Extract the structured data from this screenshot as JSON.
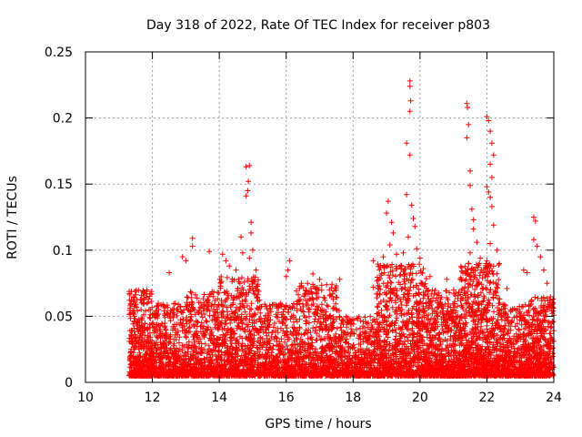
{
  "chart_data": {
    "type": "scatter",
    "title": "Day 318 of 2022, Rate Of TEC Index for receiver p803",
    "xlabel": "GPS time / hours",
    "ylabel": "ROTI / TECUs",
    "xlim": [
      10,
      24
    ],
    "ylim": [
      0,
      0.25
    ],
    "xticks": [
      "10",
      "12",
      "14",
      "16",
      "18",
      "20",
      "22",
      "24"
    ],
    "yticks": [
      "0",
      "0.05",
      "0.1",
      "0.15",
      "0.2",
      "0.25"
    ],
    "grid": true,
    "marker": "+",
    "color": "#ff0000",
    "series": [
      {
        "name": "ROTI",
        "density": [
          {
            "x0": 11.3,
            "x1": 12.0,
            "low": 0.005,
            "high": 0.07,
            "n": 500
          },
          {
            "x0": 12.0,
            "x1": 13.0,
            "low": 0.005,
            "high": 0.06,
            "n": 500
          },
          {
            "x0": 13.0,
            "x1": 14.0,
            "low": 0.005,
            "high": 0.07,
            "n": 500
          },
          {
            "x0": 14.0,
            "x1": 15.2,
            "low": 0.005,
            "high": 0.08,
            "n": 650
          },
          {
            "x0": 15.2,
            "x1": 16.3,
            "low": 0.005,
            "high": 0.06,
            "n": 520
          },
          {
            "x0": 16.3,
            "x1": 17.6,
            "low": 0.005,
            "high": 0.075,
            "n": 650
          },
          {
            "x0": 17.6,
            "x1": 18.7,
            "low": 0.005,
            "high": 0.05,
            "n": 480
          },
          {
            "x0": 18.7,
            "x1": 20.2,
            "low": 0.005,
            "high": 0.09,
            "n": 900
          },
          {
            "x0": 20.2,
            "x1": 21.2,
            "low": 0.005,
            "high": 0.07,
            "n": 650
          },
          {
            "x0": 21.2,
            "x1": 22.4,
            "low": 0.005,
            "high": 0.09,
            "n": 850
          },
          {
            "x0": 22.4,
            "x1": 23.3,
            "low": 0.005,
            "high": 0.06,
            "n": 520
          },
          {
            "x0": 23.3,
            "x1": 24.0,
            "low": 0.005,
            "high": 0.065,
            "n": 450
          }
        ],
        "peaks": [
          {
            "x": 13.2,
            "y": 0.109
          },
          {
            "x": 13.2,
            "y": 0.103
          },
          {
            "x": 12.9,
            "y": 0.095
          },
          {
            "x": 13.0,
            "y": 0.092
          },
          {
            "x": 12.5,
            "y": 0.083
          },
          {
            "x": 13.7,
            "y": 0.099
          },
          {
            "x": 14.1,
            "y": 0.097
          },
          {
            "x": 14.2,
            "y": 0.092
          },
          {
            "x": 14.3,
            "y": 0.088
          },
          {
            "x": 14.5,
            "y": 0.085
          },
          {
            "x": 14.65,
            "y": 0.11
          },
          {
            "x": 14.7,
            "y": 0.098
          },
          {
            "x": 14.8,
            "y": 0.163
          },
          {
            "x": 14.9,
            "y": 0.164
          },
          {
            "x": 14.87,
            "y": 0.152
          },
          {
            "x": 14.85,
            "y": 0.145
          },
          {
            "x": 14.8,
            "y": 0.141
          },
          {
            "x": 14.95,
            "y": 0.121
          },
          {
            "x": 14.95,
            "y": 0.113
          },
          {
            "x": 15.0,
            "y": 0.1
          },
          {
            "x": 14.9,
            "y": 0.094
          },
          {
            "x": 15.1,
            "y": 0.085
          },
          {
            "x": 16.1,
            "y": 0.092
          },
          {
            "x": 16.05,
            "y": 0.085
          },
          {
            "x": 16.0,
            "y": 0.08
          },
          {
            "x": 16.8,
            "y": 0.082
          },
          {
            "x": 17.0,
            "y": 0.078
          },
          {
            "x": 17.6,
            "y": 0.078
          },
          {
            "x": 17.5,
            "y": 0.073
          },
          {
            "x": 18.6,
            "y": 0.072
          },
          {
            "x": 18.7,
            "y": 0.067
          },
          {
            "x": 19.0,
            "y": 0.128
          },
          {
            "x": 19.05,
            "y": 0.137
          },
          {
            "x": 19.15,
            "y": 0.121
          },
          {
            "x": 19.2,
            "y": 0.113
          },
          {
            "x": 19.1,
            "y": 0.104
          },
          {
            "x": 19.3,
            "y": 0.097
          },
          {
            "x": 18.9,
            "y": 0.095
          },
          {
            "x": 18.6,
            "y": 0.092
          },
          {
            "x": 19.5,
            "y": 0.098
          },
          {
            "x": 19.6,
            "y": 0.142
          },
          {
            "x": 19.6,
            "y": 0.181
          },
          {
            "x": 19.7,
            "y": 0.172
          },
          {
            "x": 19.7,
            "y": 0.228
          },
          {
            "x": 19.7,
            "y": 0.224
          },
          {
            "x": 19.72,
            "y": 0.213
          },
          {
            "x": 19.7,
            "y": 0.205
          },
          {
            "x": 19.75,
            "y": 0.134
          },
          {
            "x": 19.8,
            "y": 0.124
          },
          {
            "x": 19.85,
            "y": 0.118
          },
          {
            "x": 19.65,
            "y": 0.11
          },
          {
            "x": 19.9,
            "y": 0.101
          },
          {
            "x": 20.0,
            "y": 0.094
          },
          {
            "x": 20.1,
            "y": 0.086
          },
          {
            "x": 20.3,
            "y": 0.08
          },
          {
            "x": 20.8,
            "y": 0.078
          },
          {
            "x": 21.2,
            "y": 0.078
          },
          {
            "x": 21.4,
            "y": 0.211
          },
          {
            "x": 21.42,
            "y": 0.208
          },
          {
            "x": 21.45,
            "y": 0.195
          },
          {
            "x": 21.4,
            "y": 0.185
          },
          {
            "x": 21.5,
            "y": 0.16
          },
          {
            "x": 21.5,
            "y": 0.149
          },
          {
            "x": 21.55,
            "y": 0.131
          },
          {
            "x": 21.6,
            "y": 0.123
          },
          {
            "x": 21.6,
            "y": 0.116
          },
          {
            "x": 21.7,
            "y": 0.106
          },
          {
            "x": 21.5,
            "y": 0.098
          },
          {
            "x": 21.45,
            "y": 0.09
          },
          {
            "x": 21.8,
            "y": 0.094
          },
          {
            "x": 22.0,
            "y": 0.201
          },
          {
            "x": 22.05,
            "y": 0.198
          },
          {
            "x": 22.1,
            "y": 0.19
          },
          {
            "x": 22.15,
            "y": 0.181
          },
          {
            "x": 22.2,
            "y": 0.172
          },
          {
            "x": 22.1,
            "y": 0.165
          },
          {
            "x": 22.15,
            "y": 0.155
          },
          {
            "x": 22.0,
            "y": 0.148
          },
          {
            "x": 22.1,
            "y": 0.14
          },
          {
            "x": 22.05,
            "y": 0.144
          },
          {
            "x": 22.15,
            "y": 0.133
          },
          {
            "x": 22.2,
            "y": 0.119
          },
          {
            "x": 22.1,
            "y": 0.105
          },
          {
            "x": 22.3,
            "y": 0.1
          },
          {
            "x": 22.0,
            "y": 0.092
          },
          {
            "x": 22.2,
            "y": 0.088
          },
          {
            "x": 22.6,
            "y": 0.071
          },
          {
            "x": 23.1,
            "y": 0.085
          },
          {
            "x": 23.2,
            "y": 0.083
          },
          {
            "x": 23.4,
            "y": 0.125
          },
          {
            "x": 23.45,
            "y": 0.122
          },
          {
            "x": 23.4,
            "y": 0.108
          },
          {
            "x": 23.5,
            "y": 0.103
          },
          {
            "x": 23.6,
            "y": 0.095
          },
          {
            "x": 23.7,
            "y": 0.085
          },
          {
            "x": 23.8,
            "y": 0.075
          }
        ]
      }
    ]
  }
}
